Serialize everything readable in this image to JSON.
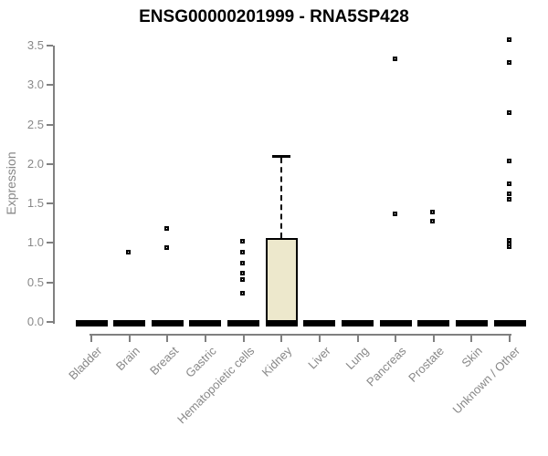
{
  "title": "ENSG00000201999 - RNA5SP428",
  "chart_data": {
    "type": "boxplot",
    "title": "ENSG00000201999 - RNA5SP428",
    "xlabel": "",
    "ylabel": "Expression",
    "ylim": [
      0,
      3.5
    ],
    "ytick_labels": [
      "0.0",
      "0.5",
      "1.0",
      "1.5",
      "2.0",
      "2.5",
      "3.0",
      "3.5"
    ],
    "grid": "off",
    "legend": "none",
    "categories": [
      "Bladder",
      "Brain",
      "Breast",
      "Gastric",
      "Hematopoietic cells",
      "Kidney",
      "Liver",
      "Lung",
      "Pancreas",
      "Prostate",
      "Skin",
      "Unknown / Other"
    ],
    "boxes": [
      {
        "category": "Bladder",
        "q1": 0,
        "median": 0,
        "q3": 0,
        "whisker_low": 0,
        "whisker_high": 0,
        "outliers": []
      },
      {
        "category": "Brain",
        "q1": 0,
        "median": 0,
        "q3": 0,
        "whisker_low": 0,
        "whisker_high": 0,
        "outliers": [
          0.88
        ]
      },
      {
        "category": "Breast",
        "q1": 0,
        "median": 0,
        "q3": 0,
        "whisker_low": 0,
        "whisker_high": 0,
        "outliers": [
          1.19,
          0.94
        ]
      },
      {
        "category": "Gastric",
        "q1": 0,
        "median": 0,
        "q3": 0,
        "whisker_low": 0,
        "whisker_high": 0,
        "outliers": []
      },
      {
        "category": "Hematopoietic cells",
        "q1": 0,
        "median": 0,
        "q3": 0,
        "whisker_low": 0,
        "whisker_high": 0,
        "outliers": [
          1.02,
          0.89,
          0.74,
          0.62,
          0.54,
          0.36
        ]
      },
      {
        "category": "Kidney",
        "q1": 0,
        "median": 0,
        "q3": 1.05,
        "whisker_low": 0,
        "whisker_high": 2.1,
        "outliers": []
      },
      {
        "category": "Liver",
        "q1": 0,
        "median": 0,
        "q3": 0,
        "whisker_low": 0,
        "whisker_high": 0,
        "outliers": []
      },
      {
        "category": "Lung",
        "q1": 0,
        "median": 0,
        "q3": 0,
        "whisker_low": 0,
        "whisker_high": 0,
        "outliers": []
      },
      {
        "category": "Pancreas",
        "q1": 0,
        "median": 0,
        "q3": 0,
        "whisker_low": 0,
        "whisker_high": 0,
        "outliers": [
          3.33,
          1.37
        ]
      },
      {
        "category": "Prostate",
        "q1": 0,
        "median": 0,
        "q3": 0,
        "whisker_low": 0,
        "whisker_high": 0,
        "outliers": [
          1.39,
          1.28
        ]
      },
      {
        "category": "Skin",
        "q1": 0,
        "median": 0,
        "q3": 0,
        "whisker_low": 0,
        "whisker_high": 0,
        "outliers": []
      },
      {
        "category": "Unknown / Other",
        "q1": 0,
        "median": 0,
        "q3": 0,
        "whisker_low": 0,
        "whisker_high": 0,
        "outliers": [
          3.58,
          3.29,
          2.65,
          2.04,
          1.75,
          1.62,
          1.55,
          1.04,
          0.99,
          0.95
        ]
      }
    ],
    "colors": {
      "box_fill": "#ede8cc",
      "box_border": "#000000",
      "marks": "#000000",
      "axis": "#808080",
      "tick_label": "#888888",
      "title": "#000000",
      "background": "#ffffff"
    }
  }
}
